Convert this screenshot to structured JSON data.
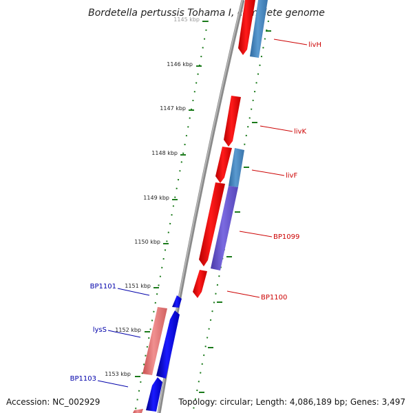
{
  "title": "Bordetella pertussis Tohama I, complete genome",
  "ticks": [
    {
      "label": "1145 kbp",
      "faded": true
    },
    {
      "label": "1146 kbp"
    },
    {
      "label": "1147 kbp"
    },
    {
      "label": "1148 kbp"
    },
    {
      "label": "1149 kbp"
    },
    {
      "label": "1150 kbp"
    },
    {
      "label": "1151 kbp"
    },
    {
      "label": "1152 kbp"
    },
    {
      "label": "1153 kbp"
    }
  ],
  "genes": [
    {
      "name": "livH",
      "strand": "forward",
      "color": "#cc0000"
    },
    {
      "name": "livK",
      "strand": "forward",
      "color": "#cc0000"
    },
    {
      "name": "livF",
      "strand": "forward",
      "color": "#cc0000"
    },
    {
      "name": "BP1099",
      "strand": "forward",
      "color": "#cc0000"
    },
    {
      "name": "BP1100",
      "strand": "forward",
      "color": "#cc0000"
    },
    {
      "name": "BP1101",
      "strand": "reverse",
      "color": "#0000aa"
    },
    {
      "name": "lysS",
      "strand": "reverse",
      "color": "#0000aa"
    },
    {
      "name": "BP1103",
      "strand": "reverse",
      "color": "#0000aa"
    }
  ],
  "colors": {
    "forward_cds": "#ff0000",
    "reverse_cds": "#0000ff",
    "forward_overlay": "#4a88c0",
    "forward_overlay_2": "#6a5acd",
    "reverse_overlay": "#e87878",
    "backbone": "#8a8a8a",
    "tick": "#1a7a1a",
    "forward_label": "#cc0000",
    "reverse_label": "#0000aa"
  },
  "footer": {
    "accession": "Accession: NC_002929",
    "topology": "Topology: circular; Length: 4,086,189 bp; Genes: 3,497"
  }
}
